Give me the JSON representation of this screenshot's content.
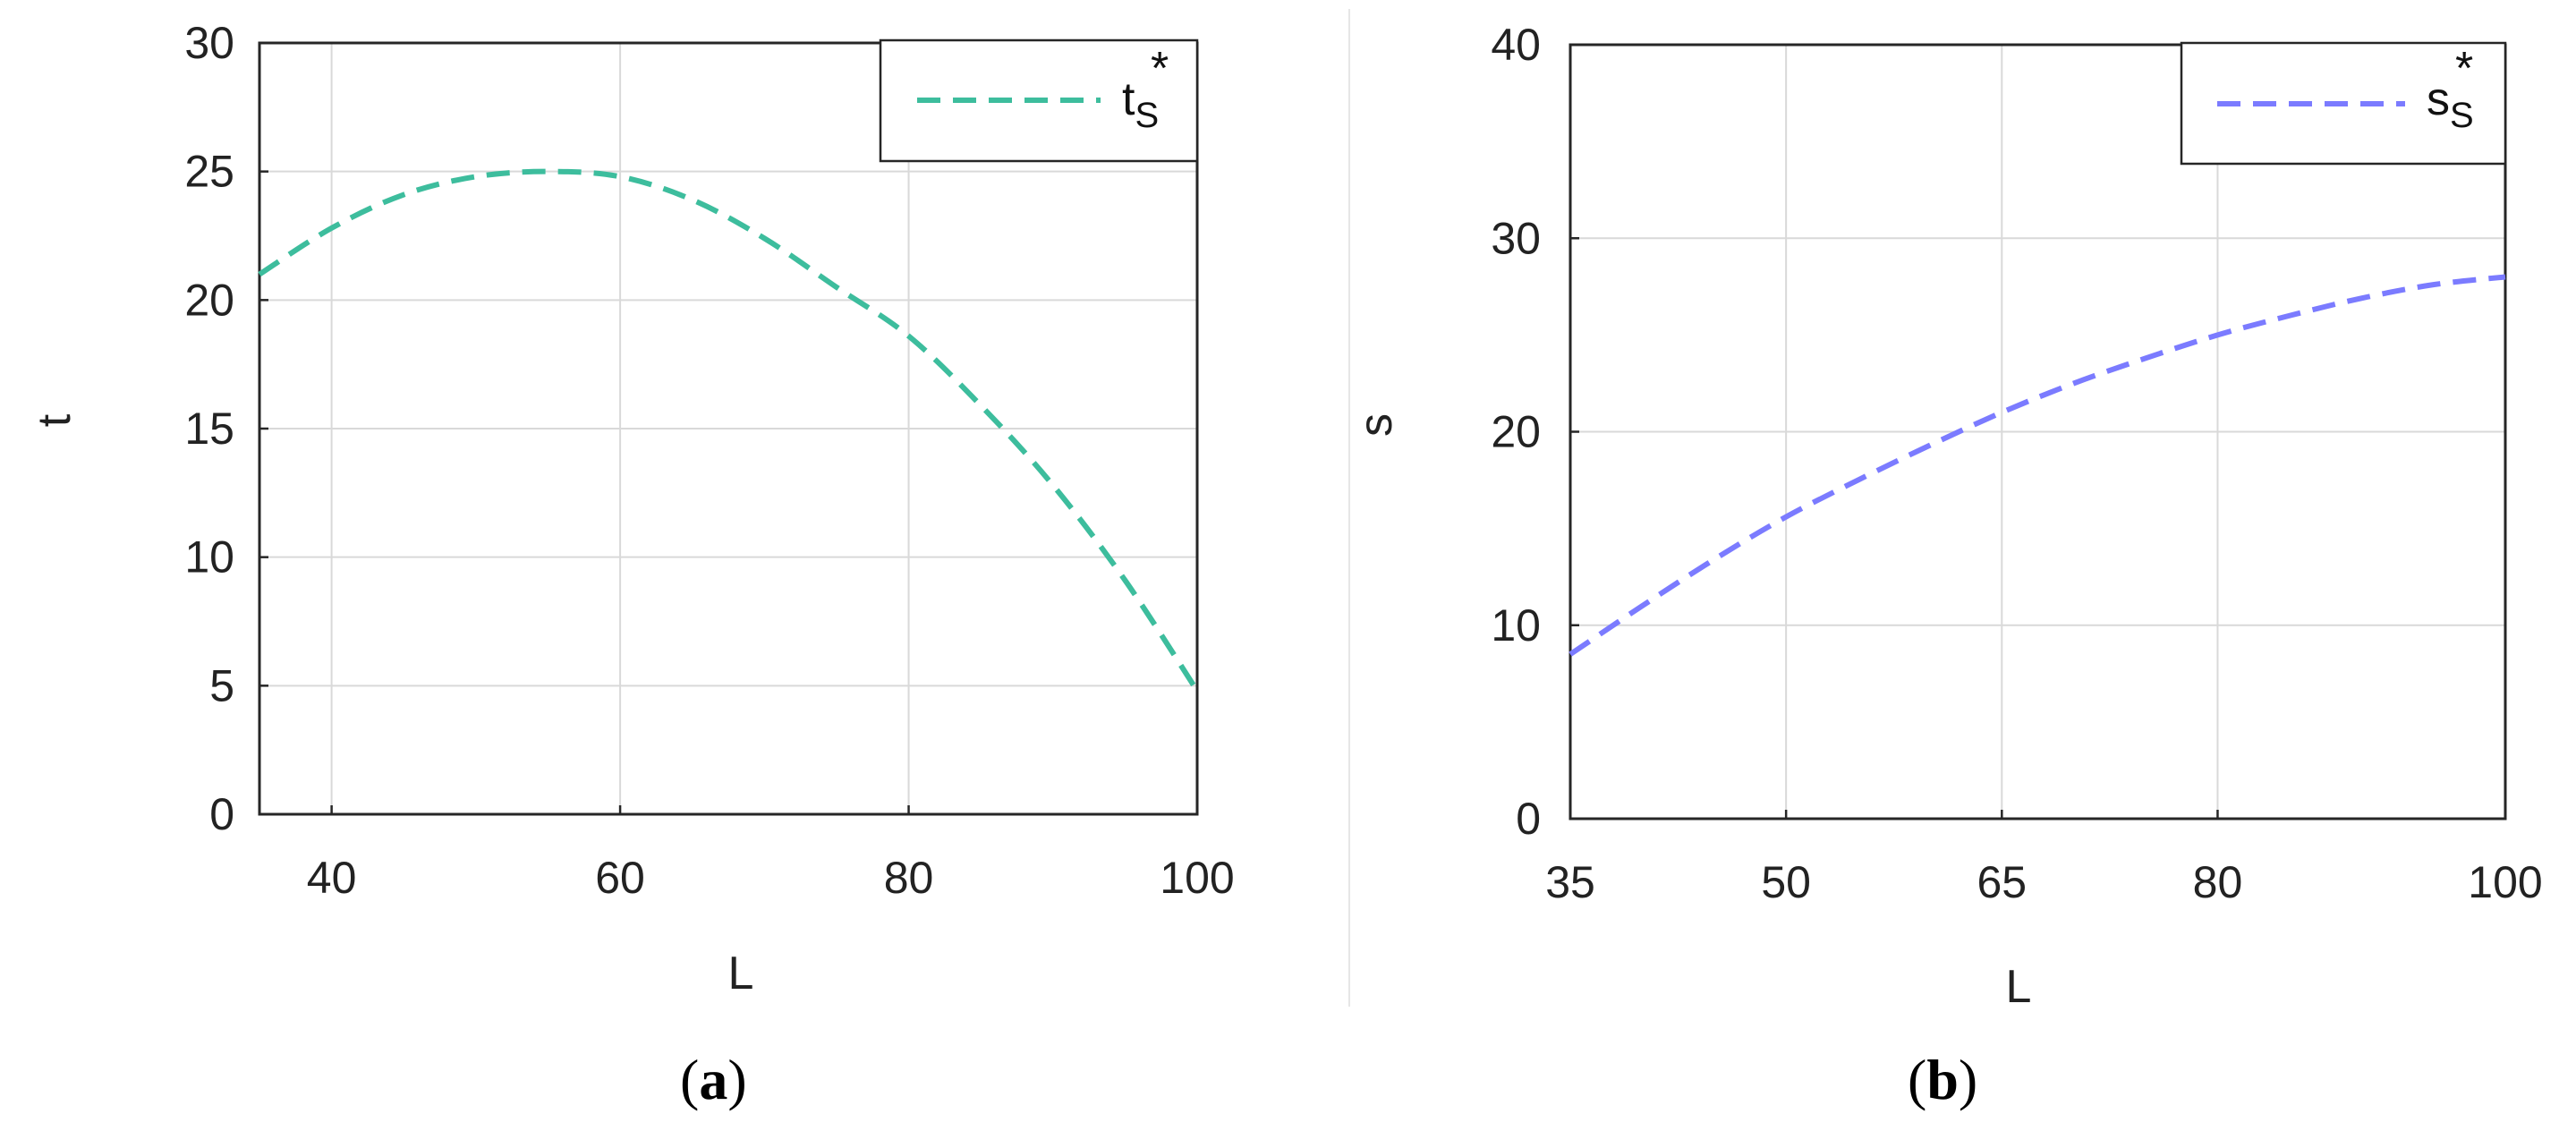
{
  "chart_data": [
    {
      "type": "line",
      "panel_label": "a",
      "title": "",
      "xlabel": "L",
      "ylabel": "t",
      "xlim": [
        35,
        100
      ],
      "ylim": [
        0,
        30
      ],
      "xticks": [
        40,
        60,
        80,
        100
      ],
      "yticks": [
        0,
        5,
        10,
        15,
        20,
        25,
        30
      ],
      "grid": true,
      "legend_position": "top-right",
      "series": [
        {
          "name": "t",
          "name_sup": "*",
          "name_sub": "S",
          "color": "#3dbd9d",
          "style": "dashed",
          "x": [
            35,
            40,
            45,
            50,
            55,
            60,
            65,
            70,
            75,
            80,
            85,
            90,
            95,
            100
          ],
          "y": [
            21.0,
            22.8,
            24.1,
            24.8,
            25.0,
            24.8,
            23.9,
            22.4,
            20.5,
            18.6,
            15.9,
            12.8,
            9.1,
            4.8
          ]
        }
      ]
    },
    {
      "type": "line",
      "panel_label": "b",
      "title": "",
      "xlabel": "L",
      "ylabel": "s",
      "xlim": [
        35,
        100
      ],
      "ylim": [
        0,
        40
      ],
      "xticks": [
        35,
        50,
        65,
        80,
        100
      ],
      "yticks": [
        0,
        10,
        20,
        30,
        40
      ],
      "grid": true,
      "legend_position": "top-right",
      "series": [
        {
          "name": "s",
          "name_sup": "*",
          "name_sub": "S",
          "color": "#7b7bff",
          "style": "dashed",
          "x": [
            35,
            40,
            45,
            50,
            55,
            60,
            65,
            70,
            75,
            80,
            85,
            90,
            95,
            100
          ],
          "y": [
            8.5,
            11.0,
            13.4,
            15.6,
            17.5,
            19.3,
            21.0,
            22.5,
            23.8,
            25.0,
            26.0,
            26.9,
            27.6,
            28.0
          ]
        }
      ]
    }
  ]
}
